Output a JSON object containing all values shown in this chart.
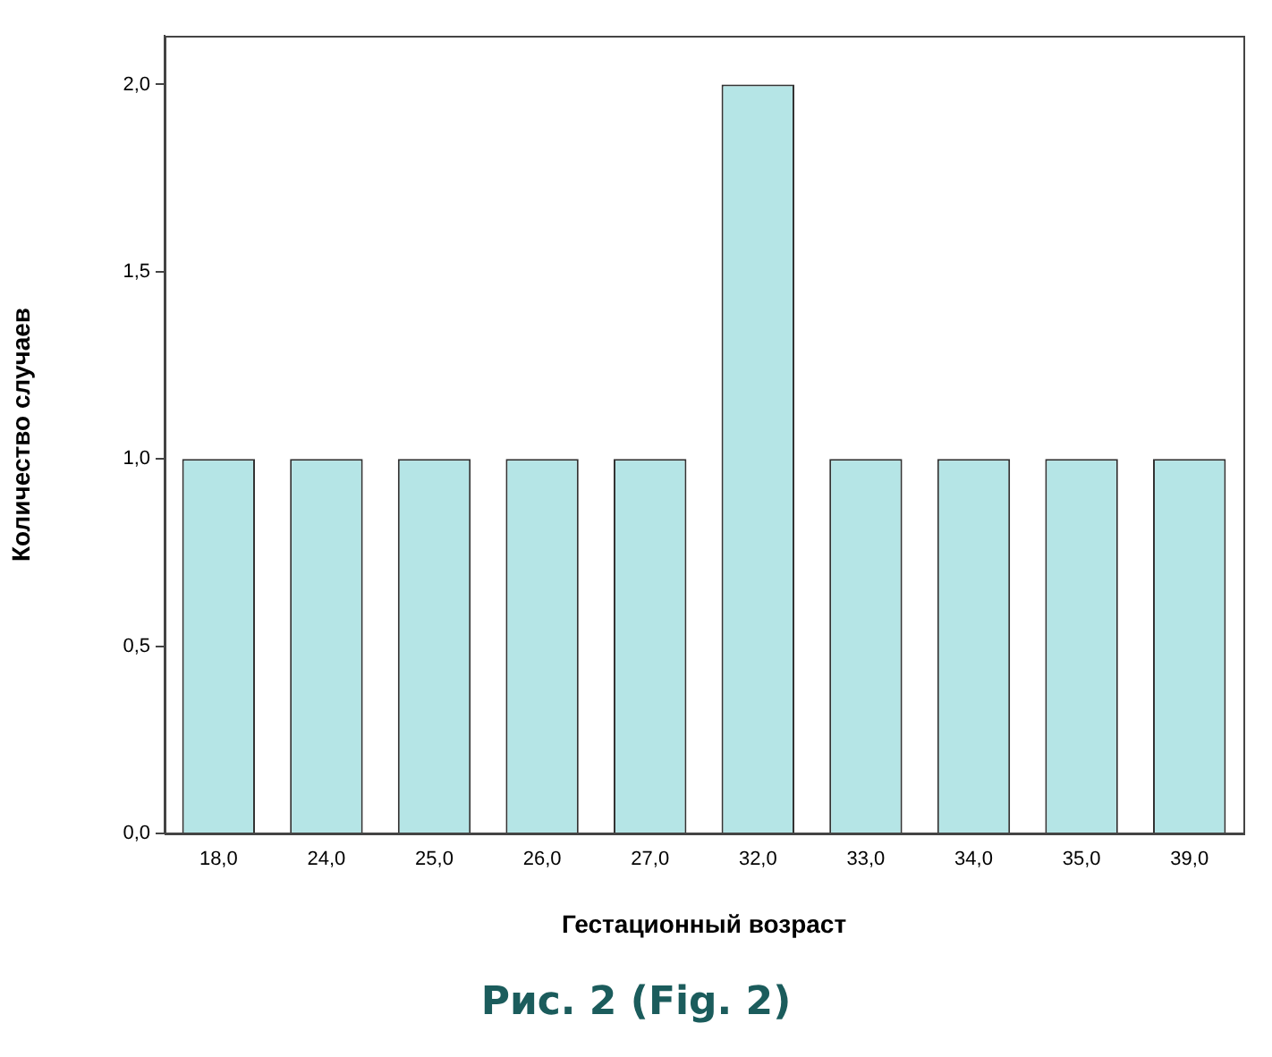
{
  "chart_data": {
    "type": "bar",
    "xlabel": "Гестационный возраст",
    "ylabel": "Количество случаев",
    "categories": [
      "18,0",
      "24,0",
      "25,0",
      "26,0",
      "27,0",
      "32,0",
      "33,0",
      "34,0",
      "35,0",
      "39,0"
    ],
    "values": [
      1,
      1,
      1,
      1,
      1,
      2,
      1,
      1,
      1,
      1
    ],
    "color": "#b5e5e6",
    "ylim": [
      0,
      2.13
    ],
    "yticks": [
      {
        "value": 0,
        "label": "0,0"
      },
      {
        "value": 0.5,
        "label": "0,5"
      },
      {
        "value": 1,
        "label": "1,0"
      },
      {
        "value": 1.5,
        "label": "1,5"
      },
      {
        "value": 2,
        "label": "2,0"
      }
    ],
    "grid": false,
    "legend": false,
    "annotations": [
      "Рис. 2 (Fig. 2)"
    ]
  }
}
